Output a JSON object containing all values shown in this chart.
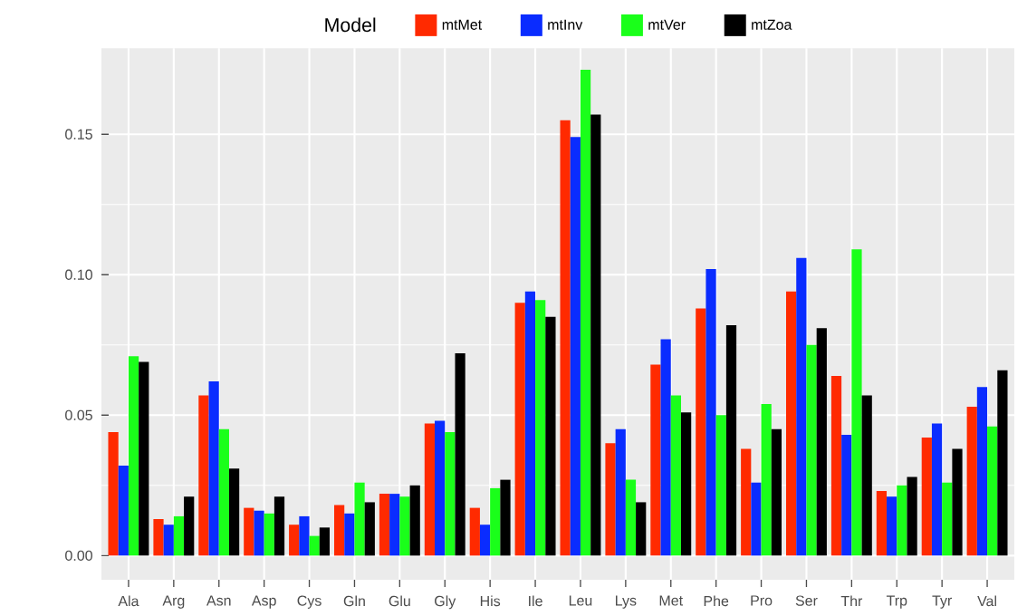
{
  "chart_data": {
    "type": "bar",
    "legend_title": "Model",
    "legend": "top",
    "categories": [
      "Ala",
      "Arg",
      "Asn",
      "Asp",
      "Cys",
      "Gln",
      "Glu",
      "Gly",
      "His",
      "Ile",
      "Leu",
      "Lys",
      "Met",
      "Phe",
      "Pro",
      "Ser",
      "Thr",
      "Trp",
      "Tyr",
      "Val"
    ],
    "series": [
      {
        "name": "mtMet",
        "color": "#ff2a00",
        "values": [
          0.044,
          0.013,
          0.057,
          0.017,
          0.011,
          0.018,
          0.022,
          0.047,
          0.017,
          0.09,
          0.155,
          0.04,
          0.068,
          0.088,
          0.038,
          0.094,
          0.064,
          0.023,
          0.042,
          0.053
        ]
      },
      {
        "name": "mtInv",
        "color": "#0a2cff",
        "values": [
          0.032,
          0.011,
          0.062,
          0.016,
          0.014,
          0.015,
          0.022,
          0.048,
          0.011,
          0.094,
          0.149,
          0.045,
          0.077,
          0.102,
          0.026,
          0.106,
          0.043,
          0.021,
          0.047,
          0.06
        ]
      },
      {
        "name": "mtVer",
        "color": "#1aff1a",
        "values": [
          0.071,
          0.014,
          0.045,
          0.015,
          0.007,
          0.026,
          0.021,
          0.044,
          0.024,
          0.091,
          0.173,
          0.027,
          0.057,
          0.05,
          0.054,
          0.075,
          0.109,
          0.025,
          0.026,
          0.046
        ]
      },
      {
        "name": "mtZoa",
        "color": "#000000",
        "values": [
          0.069,
          0.021,
          0.031,
          0.021,
          0.01,
          0.019,
          0.025,
          0.072,
          0.027,
          0.085,
          0.157,
          0.019,
          0.051,
          0.082,
          0.045,
          0.081,
          0.057,
          0.028,
          0.038,
          0.066
        ]
      }
    ],
    "ylim": [
      -0.0086,
      0.1806
    ],
    "yticks": [
      {
        "value": 0,
        "label": "0.00"
      },
      {
        "value": 0.05,
        "label": "0.05"
      },
      {
        "value": 0.1,
        "label": "0.10"
      },
      {
        "value": 0.15,
        "label": "0.15"
      }
    ],
    "grid": true
  }
}
